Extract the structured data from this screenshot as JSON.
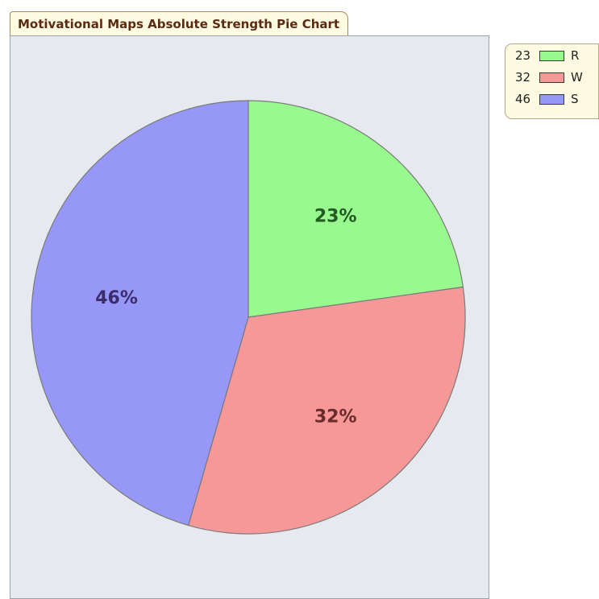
{
  "chart_data": {
    "type": "pie",
    "title": "Motivational Maps Absolute Strength Pie Chart",
    "series": [
      {
        "name": "R",
        "value": 23,
        "label": "23%",
        "color": "#98f98f"
      },
      {
        "name": "W",
        "value": 32,
        "label": "32%",
        "color": "#f69898"
      },
      {
        "name": "S",
        "value": 46,
        "label": "46%",
        "color": "#9797f8"
      }
    ],
    "legend_placement": "top-right",
    "grid": false,
    "label_colors": {
      "R": "#235a23",
      "W": "#6a2b2b",
      "S": "#3a2d6b"
    },
    "panel_background": "#e6eaee"
  }
}
